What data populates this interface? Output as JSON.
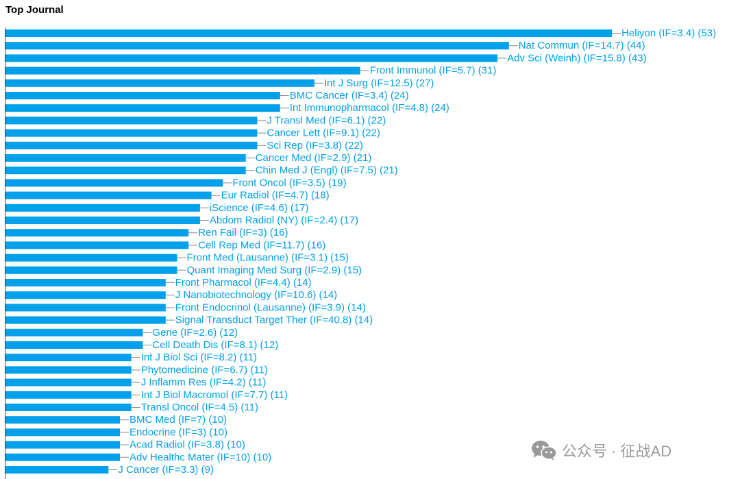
{
  "chart_data": {
    "type": "bar",
    "orientation": "horizontal",
    "title": "Top Journal",
    "bar_color": "#00a0ea",
    "categories": [
      "Heliyon (IF=3.4) (53)",
      "Nat Commun (IF=14.7) (44)",
      "Adv Sci (Weinh) (IF=15.8) (43)",
      "Front Immunol (IF=5.7) (31)",
      "Int J Surg (IF=12.5) (27)",
      "BMC Cancer (IF=3.4) (24)",
      "Int Immunopharmacol (IF=4.8) (24)",
      "J Transl Med (IF=6.1) (22)",
      "Cancer Lett (IF=9.1) (22)",
      "Sci Rep (IF=3.8) (22)",
      "Cancer Med (IF=2.9) (21)",
      "Chin Med J (Engl) (IF=7.5) (21)",
      "Front Oncol (IF=3.5) (19)",
      "Eur Radiol (IF=4.7) (18)",
      "iScience (IF=4.6) (17)",
      "Abdom Radiol (NY) (IF=2.4) (17)",
      "Ren Fail (IF=3) (16)",
      "Cell Rep Med (IF=11.7) (16)",
      "Front Med (Lausanne) (IF=3.1) (15)",
      "Quant Imaging Med Surg (IF=2.9) (15)",
      "Front Pharmacol (IF=4.4) (14)",
      "J Nanobiotechnology (IF=10.6) (14)",
      "Front Endocrinol (Lausanne) (IF=3.9) (14)",
      "Signal Transduct Target Ther (IF=40.8) (14)",
      "Gene (IF=2.6) (12)",
      "Cell Death Dis (IF=8.1) (12)",
      "Int J Biol Sci (IF=8.2) (11)",
      "Phytomedicine (IF=6.7) (11)",
      "J Inflamm Res (IF=4.2) (11)",
      "Int J Biol Macromol (IF=7.7) (11)",
      "Transl Oncol (IF=4.5) (11)",
      "BMC Med (IF=7) (10)",
      "Endocrine (IF=3) (10)",
      "Acad Radiol (IF=3.8) (10)",
      "Adv Healthc Mater (IF=10) (10)",
      "J Cancer (IF=3.3) (9)"
    ],
    "values": [
      53,
      44,
      43,
      31,
      27,
      24,
      24,
      22,
      22,
      22,
      21,
      21,
      19,
      18,
      17,
      17,
      16,
      16,
      15,
      15,
      14,
      14,
      14,
      14,
      12,
      12,
      11,
      11,
      11,
      11,
      11,
      10,
      10,
      10,
      10,
      9
    ]
  },
  "watermark": {
    "text": "公众号 · 征战AD",
    "icon": "wechat-icon",
    "color": "#9a9a9a"
  }
}
